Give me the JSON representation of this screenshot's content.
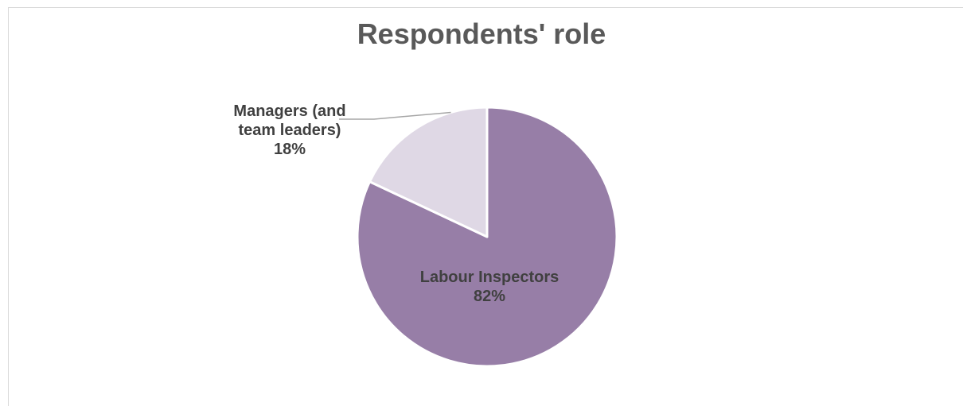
{
  "chart_data": {
    "type": "pie",
    "title": "Respondents' role",
    "slices": [
      {
        "name": "Labour Inspectors",
        "label_lines": [
          "Labour Inspectors"
        ],
        "value": 82,
        "percent_label": "82%",
        "color": "#977ea7"
      },
      {
        "name": "Managers (and team leaders)",
        "label_lines": [
          "Managers (and",
          "team leaders)"
        ],
        "value": 18,
        "percent_label": "18%",
        "color": "#dfd8e5"
      }
    ],
    "legend": "none",
    "label_position": "inside for large slice, outside with leader line for small slice"
  }
}
